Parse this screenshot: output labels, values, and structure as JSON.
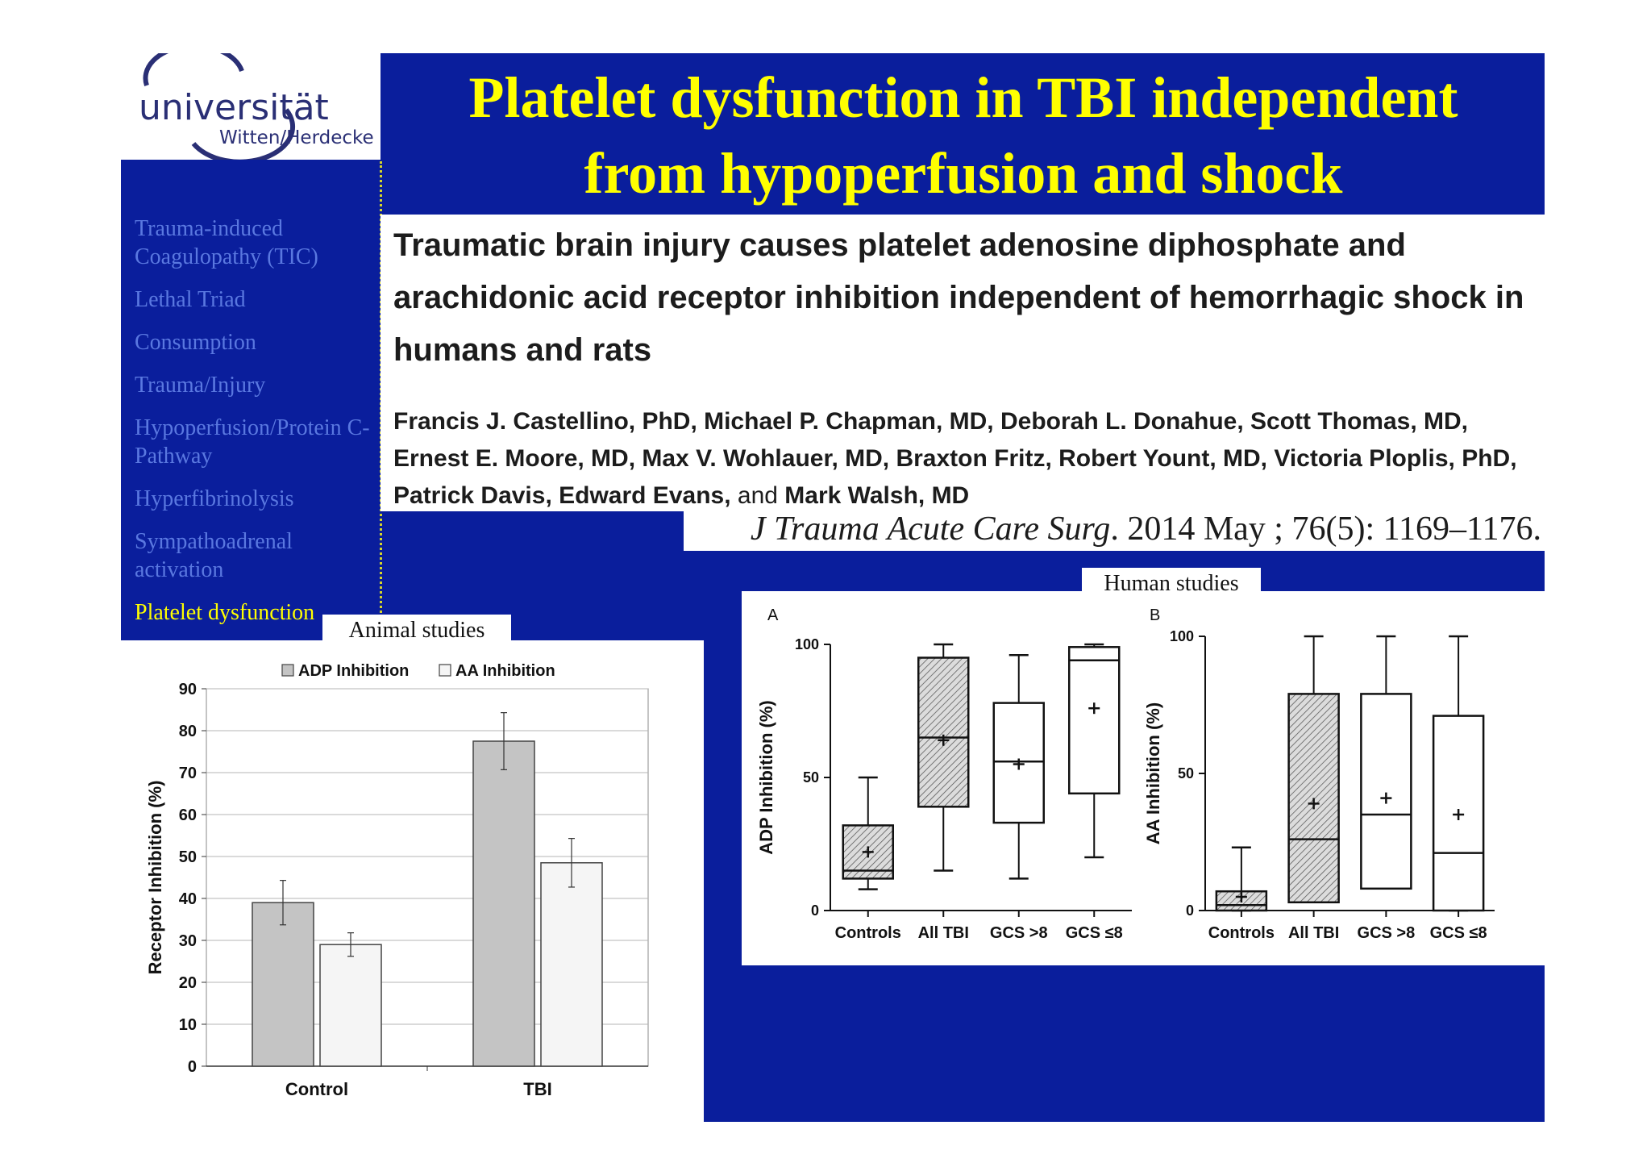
{
  "logo": {
    "main": "universität",
    "sub": "Witten/Herdecke"
  },
  "slide_title_line1": "Platelet dysfunction in TBI independent",
  "slide_title_line2": "from hypoperfusion and shock",
  "nav": {
    "items": [
      {
        "label": "Trauma-induced Coagulopathy (TIC)",
        "active": false
      },
      {
        "label": "Lethal Triad",
        "active": false
      },
      {
        "label": "Consumption",
        "active": false
      },
      {
        "label": "Trauma/Injury",
        "active": false
      },
      {
        "label": "Hypoperfusion/Protein C-Pathway",
        "active": false
      },
      {
        "label": "Hyperfibrinolysis",
        "active": false
      },
      {
        "label": "Sympathoadrenal activation",
        "active": false
      },
      {
        "label": "Platelet dysfunction",
        "active": true
      }
    ]
  },
  "paper": {
    "title": "Traumatic brain injury causes platelet adenosine diphosphate and arachidonic acid receptor inhibition independent of hemorrhagic shock in humans and rats",
    "authors_part1": "Francis J. Castellino, PhD, Michael P. Chapman, MD, Deborah L. Donahue, Scott Thomas, MD, Ernest E. Moore, MD, Max V. Wohlauer, MD, Braxton Fritz, Robert Yount, MD, Victoria Ploplis, PhD, Patrick Davis, Edward Evans,",
    "authors_and": "and",
    "authors_part2": "Mark Walsh, MD",
    "journal": "J Trauma Acute Care Surg",
    "citation_rest": ". 2014 May ; 76(5): 1169–1176."
  },
  "labels": {
    "animal": "Animal studies",
    "human": "Human studies"
  },
  "colors": {
    "slide_bg": "#0a1e9c",
    "title": "#ffff00",
    "nav_text": "#5a78e0",
    "nav_active": "#ffff00"
  },
  "chart_data": [
    {
      "type": "bar",
      "ylabel": "Receptor Inhibition (%)",
      "ylim": [
        0,
        90
      ],
      "yticks": [
        0,
        10,
        20,
        30,
        40,
        50,
        60,
        70,
        80,
        90
      ],
      "categories": [
        "Control",
        "TBI"
      ],
      "legend_position": "top",
      "grid": true,
      "series": [
        {
          "name": "ADP Inhibition",
          "color": "#c4c4c4",
          "values": [
            39,
            77.5
          ],
          "errors": [
            5.3,
            6.8
          ]
        },
        {
          "name": "AA Inhibition",
          "color": "#f5f5f5",
          "values": [
            29,
            48.5
          ],
          "errors": [
            2.8,
            5.8
          ]
        }
      ]
    },
    {
      "type": "box",
      "panel": "A",
      "ylabel": "ADP Inhibition (%)",
      "ylim": [
        0,
        100
      ],
      "yticks": [
        0,
        50,
        100
      ],
      "categories": [
        "Controls",
        "All TBI",
        "GCS >8",
        "GCS ≤8"
      ],
      "boxes": [
        {
          "min": 8,
          "q1": 12,
          "median": 15,
          "q3": 32,
          "max": 50,
          "mean": 22,
          "hatched": true
        },
        {
          "min": 15,
          "q1": 39,
          "median": 65,
          "q3": 95,
          "max": 100,
          "mean": 64,
          "hatched": true
        },
        {
          "min": 12,
          "q1": 33,
          "median": 56,
          "q3": 78,
          "max": 96,
          "mean": 55,
          "hatched": false
        },
        {
          "min": 20,
          "q1": 44,
          "median": 94,
          "q3": 99,
          "max": 100,
          "mean": 76,
          "hatched": false
        }
      ]
    },
    {
      "type": "box",
      "panel": "B",
      "ylabel": "AA Inhibition (%)",
      "ylim": [
        0,
        100
      ],
      "yticks": [
        0,
        50,
        100
      ],
      "categories": [
        "Controls",
        "All TBI",
        "GCS >8",
        "GCS ≤8"
      ],
      "boxes": [
        {
          "min": 0,
          "q1": 0,
          "median": 2,
          "q3": 7,
          "max": 23,
          "mean": 5,
          "hatched": true
        },
        {
          "min": 3,
          "q1": 3,
          "median": 26,
          "q3": 79,
          "max": 100,
          "mean": 39,
          "hatched": true
        },
        {
          "min": 8,
          "q1": 8,
          "median": 35,
          "q3": 79,
          "max": 100,
          "mean": 41,
          "hatched": false
        },
        {
          "min": 0,
          "q1": 0,
          "median": 21,
          "q3": 71,
          "max": 100,
          "mean": 35,
          "hatched": false
        }
      ]
    }
  ]
}
